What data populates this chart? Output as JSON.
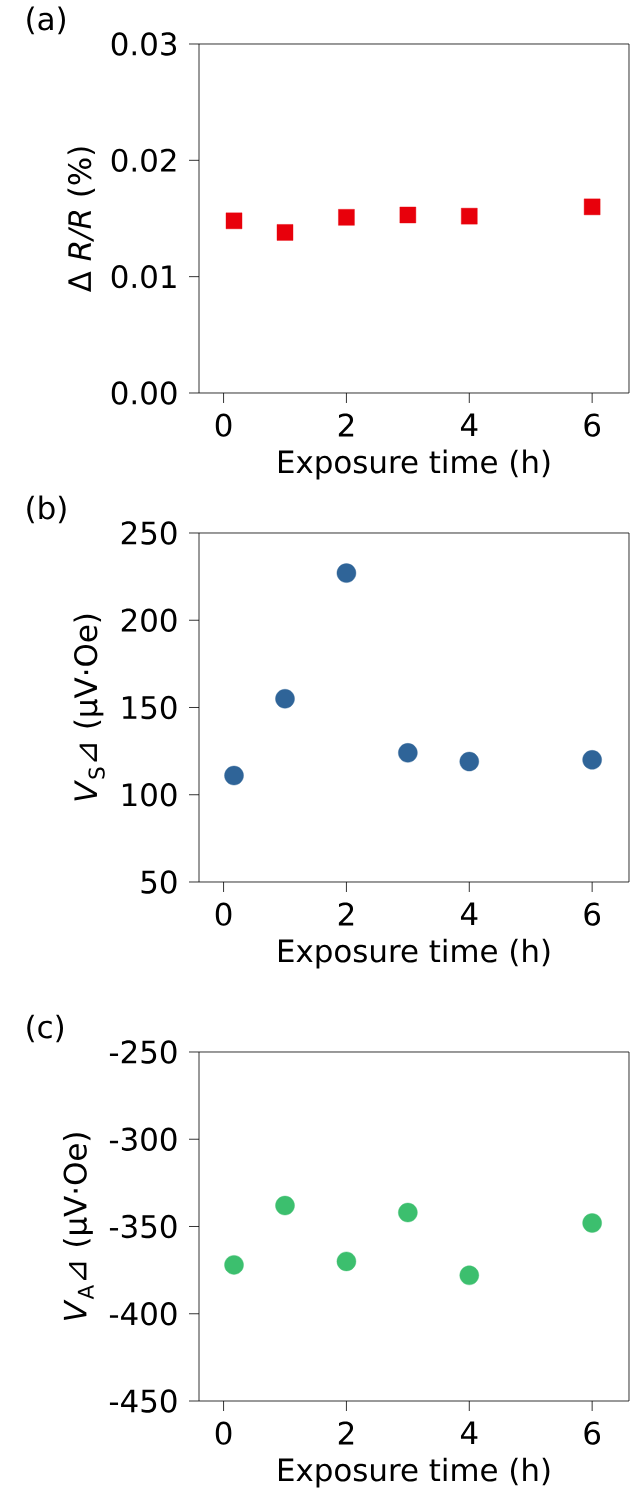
{
  "chart_data": [
    {
      "type": "scatter",
      "title": "(a)",
      "xlabel": "Exposure time (h)",
      "ylabel": "Δ *R/R* (%)",
      "x": [
        0.17,
        1,
        2,
        3,
        4,
        6
      ],
      "values": [
        0.0148,
        0.0138,
        0.0151,
        0.0153,
        0.0152,
        0.016
      ],
      "color": "#e8000b",
      "marker": "square",
      "xlim": [
        -0.4,
        6.6
      ],
      "ylim": [
        0,
        0.03
      ],
      "xticks": [
        0,
        2,
        4,
        6
      ],
      "yticks": [
        {
          "value": 0,
          "label": "0.00"
        },
        0.01,
        0.02,
        0.03
      ]
    },
    {
      "type": "scatter",
      "title": "(b)",
      "xlabel": "Exposure time (h)",
      "ylabel": "*V*$_{S}$⊿ (μV·Oe)",
      "x": [
        0.17,
        1,
        2,
        3,
        4,
        6
      ],
      "values": [
        111,
        155,
        227,
        124,
        119,
        120
      ],
      "color": "#2f6498",
      "marker": "circle",
      "xlim": [
        -0.4,
        6.6
      ],
      "ylim": [
        50,
        250
      ],
      "xticks": [
        0,
        2,
        4,
        6
      ],
      "yticks": [
        50,
        100,
        150,
        200,
        250
      ]
    },
    {
      "type": "scatter",
      "title": "(c)",
      "xlabel": "Exposure time (h)",
      "ylabel": "*V*$_{A}$⊿ (μV·Oe)",
      "x": [
        0.17,
        1,
        2,
        3,
        4,
        6
      ],
      "values": [
        -372,
        -338,
        -370,
        -342,
        -378,
        -348
      ],
      "color": "#3cbf6e",
      "marker": "circle",
      "xlim": [
        -0.4,
        6.6
      ],
      "ylim": [
        -450,
        -250
      ],
      "xticks": [
        0,
        2,
        4,
        6
      ],
      "yticks": [
        -450,
        -400,
        -350,
        -300,
        -250
      ]
    }
  ]
}
